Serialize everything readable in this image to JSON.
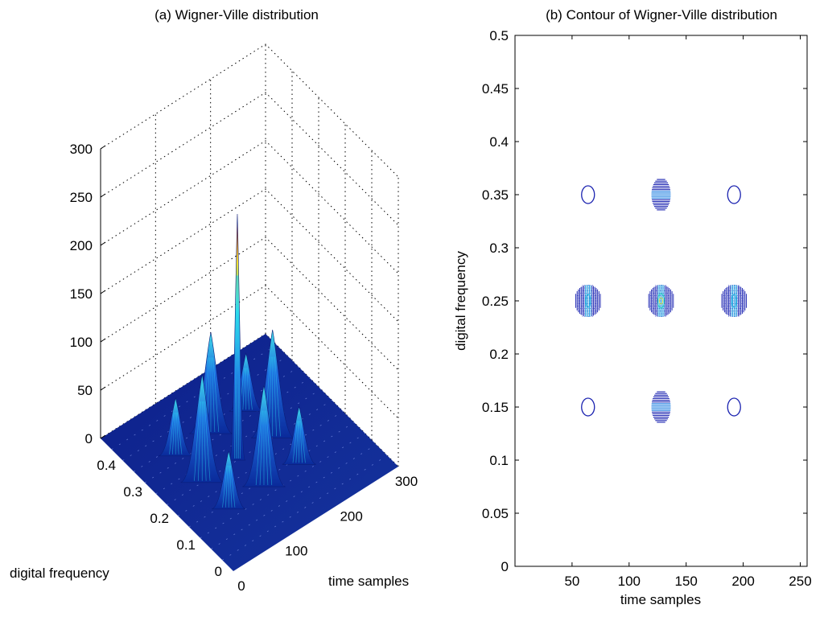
{
  "chart_data": [
    {
      "type": "surface",
      "title": "(a) Wigner-Ville distribution",
      "xlabel": "time samples",
      "ylabel": "digital frequency",
      "zlabel": "",
      "x_ticks": [
        "0",
        "100",
        "200",
        "300"
      ],
      "y_ticks": [
        "0",
        "0.1",
        "0.2",
        "0.3",
        "0.4"
      ],
      "z_ticks": [
        "0",
        "50",
        "100",
        "150",
        "200",
        "250",
        "300"
      ],
      "xlim": [
        0,
        300
      ],
      "ylim": [
        0,
        0.5
      ],
      "zlim": [
        0,
        300
      ],
      "grid": true,
      "colormap": "jet",
      "peaks": [
        {
          "t": 64,
          "f": 0.15,
          "z": 60
        },
        {
          "t": 128,
          "f": 0.15,
          "z": 105
        },
        {
          "t": 192,
          "f": 0.15,
          "z": 60
        },
        {
          "t": 64,
          "f": 0.25,
          "z": 112
        },
        {
          "t": 128,
          "f": 0.25,
          "z": 255
        },
        {
          "t": 192,
          "f": 0.25,
          "z": 112
        },
        {
          "t": 64,
          "f": 0.35,
          "z": 60
        },
        {
          "t": 128,
          "f": 0.35,
          "z": 105
        },
        {
          "t": 192,
          "f": 0.35,
          "z": 60
        }
      ]
    },
    {
      "type": "contour",
      "title": "(b) Contour of Wigner-Ville distribution",
      "xlabel": "time samples",
      "ylabel": "digital frequency",
      "x_ticks": [
        "50",
        "100",
        "150",
        "200",
        "250"
      ],
      "y_ticks": [
        "0",
        "0.05",
        "0.1",
        "0.15",
        "0.2",
        "0.25",
        "0.3",
        "0.35",
        "0.4",
        "0.45",
        "0.5"
      ],
      "xlim": [
        0,
        256
      ],
      "ylim": [
        0,
        0.5
      ],
      "grid": false,
      "blobs": [
        {
          "t": 64,
          "f": 0.35,
          "kind": "ring"
        },
        {
          "t": 128,
          "f": 0.35,
          "kind": "striped"
        },
        {
          "t": 192,
          "f": 0.35,
          "kind": "ring"
        },
        {
          "t": 64,
          "f": 0.25,
          "kind": "cross"
        },
        {
          "t": 128,
          "f": 0.25,
          "kind": "cross-center"
        },
        {
          "t": 192,
          "f": 0.25,
          "kind": "cross"
        },
        {
          "t": 64,
          "f": 0.15,
          "kind": "ring"
        },
        {
          "t": 128,
          "f": 0.15,
          "kind": "striped"
        },
        {
          "t": 192,
          "f": 0.15,
          "kind": "ring"
        }
      ]
    }
  ]
}
